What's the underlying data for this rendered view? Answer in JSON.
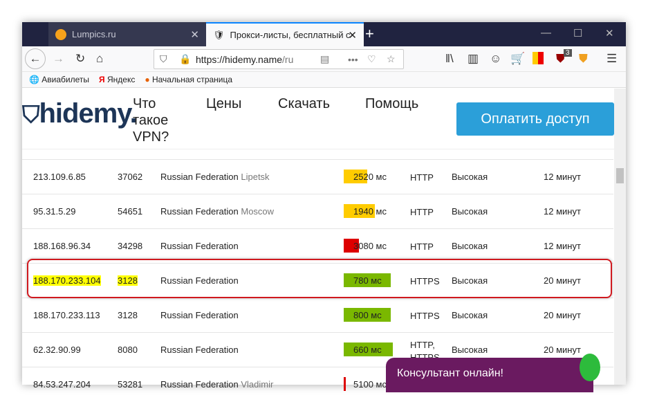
{
  "browser": {
    "tabs": [
      {
        "title": "Lumpics.ru",
        "active": false
      },
      {
        "title": "Прокси-листы, бесплатный с",
        "active": true
      }
    ],
    "url_host": "https://hidemy.name",
    "url_rest": "/ru",
    "extension_badge": "3",
    "bookmarks": [
      "Авиабилеты",
      "Яндекс",
      "Начальная страница"
    ]
  },
  "site": {
    "logo": "hidemy.",
    "nav": [
      "Что такое VPN?",
      "Цены",
      "Скачать",
      "Помощь"
    ],
    "pay_button": "Оплатить доступ"
  },
  "rows": [
    {
      "ip": "213.109.6.85",
      "port": "37062",
      "country": "Russian Federation",
      "city": "Lipetsk",
      "speed": "2520 мс",
      "ms": 2520,
      "color": "#ffcc00",
      "type": "HTTP",
      "anon": "Высокая",
      "time": "12 минут"
    },
    {
      "ip": "95.31.5.29",
      "port": "54651",
      "country": "Russian Federation",
      "city": "Moscow",
      "speed": "1940 мс",
      "ms": 1940,
      "color": "#ffcc00",
      "type": "HTTP",
      "anon": "Высокая",
      "time": "12 минут"
    },
    {
      "ip": "188.168.96.34",
      "port": "34298",
      "country": "Russian Federation",
      "city": "",
      "speed": "3080 мс",
      "ms": 3080,
      "color": "#dd0000",
      "type": "HTTP",
      "anon": "Высокая",
      "time": "12 минут"
    },
    {
      "ip": "188.170.233.104",
      "port": "3128",
      "country": "Russian Federation",
      "city": "",
      "speed": "780 мс",
      "ms": 780,
      "color": "#7ab800",
      "type": "HTTPS",
      "anon": "Высокая",
      "time": "20 минут",
      "highlighted": true
    },
    {
      "ip": "188.170.233.113",
      "port": "3128",
      "country": "Russian Federation",
      "city": "",
      "speed": "800 мс",
      "ms": 800,
      "color": "#7ab800",
      "type": "HTTPS",
      "anon": "Высокая",
      "time": "20 минут"
    },
    {
      "ip": "62.32.90.99",
      "port": "8080",
      "country": "Russian Federation",
      "city": "",
      "speed": "660 мс",
      "ms": 660,
      "color": "#7ab800",
      "type": "HTTP, HTTPS",
      "anon": "Высокая",
      "time": "20 минут"
    },
    {
      "ip": "84.53.247.204",
      "port": "53281",
      "country": "Russian Federation",
      "city": "Vladimir",
      "speed": "5100 мс",
      "ms": 5100,
      "color": "#dd0000",
      "type": "",
      "anon": "",
      "time": ""
    }
  ],
  "chat": {
    "label": "Консультант онлайн!"
  }
}
